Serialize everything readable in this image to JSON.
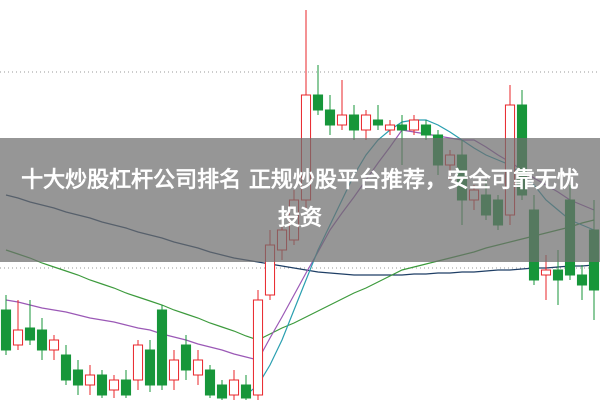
{
  "chart_data": {
    "type": "candlestick",
    "title": "十大炒股杠杆公司排名 正规炒股平台推荐，安全可靠无忧投资",
    "categories": [
      null,
      null,
      null,
      null,
      null,
      null,
      null,
      null,
      null,
      null,
      null,
      null,
      null,
      null,
      null,
      null,
      null,
      null,
      null,
      null,
      null,
      null,
      null,
      null,
      null,
      null,
      null,
      null,
      null,
      null,
      null,
      null,
      null,
      null,
      null,
      null,
      null,
      null,
      null,
      null,
      null,
      null,
      null,
      null,
      null,
      null,
      null,
      null,
      null,
      null
    ],
    "open": [
      90,
      55,
      72,
      70,
      50,
      45,
      30,
      15,
      25,
      10,
      20,
      20,
      50,
      90,
      20,
      55,
      25,
      30,
      15,
      5,
      15,
      5,
      105,
      150,
      160,
      200,
      305,
      290,
      275,
      285,
      270,
      280,
      270,
      275,
      270,
      275,
      265,
      235,
      245,
      200,
      205,
      200,
      185,
      295,
      190,
      125,
      130,
      200,
      125,
      170
    ],
    "close": [
      50,
      70,
      60,
      50,
      60,
      20,
      15,
      25,
      5,
      20,
      5,
      55,
      15,
      15,
      40,
      30,
      40,
      5,
      2,
      20,
      2,
      100,
      155,
      170,
      200,
      305,
      290,
      275,
      285,
      270,
      285,
      275,
      275,
      270,
      280,
      265,
      235,
      245,
      200,
      210,
      185,
      175,
      295,
      205,
      120,
      130,
      120,
      125,
      115,
      110
    ],
    "high": [
      105,
      100,
      100,
      82,
      65,
      55,
      40,
      35,
      30,
      25,
      30,
      60,
      60,
      95,
      50,
      65,
      50,
      35,
      20,
      30,
      25,
      110,
      170,
      185,
      210,
      390,
      335,
      305,
      320,
      295,
      290,
      295,
      280,
      285,
      285,
      280,
      270,
      250,
      260,
      215,
      220,
      205,
      315,
      310,
      205,
      145,
      150,
      215,
      135,
      200
    ],
    "low": [
      45,
      50,
      55,
      40,
      40,
      15,
      5,
      5,
      2,
      2,
      2,
      10,
      8,
      10,
      10,
      20,
      15,
      2,
      0,
      0,
      0,
      0,
      100,
      140,
      155,
      190,
      285,
      265,
      270,
      260,
      260,
      270,
      265,
      235,
      265,
      260,
      225,
      220,
      175,
      190,
      180,
      170,
      175,
      200,
      115,
      100,
      95,
      120,
      100,
      80
    ],
    "up_color": "#e8242a",
    "down_color": "#17963a",
    "ylim": [
      0,
      400
    ],
    "series": [
      {
        "color": "#1f3f66",
        "values": [
          205,
          202,
          198,
          195,
          192,
          188,
          185,
          182,
          178,
          175,
          172,
          168,
          165,
          162,
          158,
          155,
          152,
          148,
          145,
          142,
          140,
          138,
          136,
          134,
          132,
          130,
          128,
          127,
          126,
          125,
          125,
          125,
          125,
          125,
          126,
          126,
          127,
          127,
          128,
          128,
          129,
          130,
          130,
          131,
          132,
          132,
          133,
          134,
          134,
          135
        ]
      },
      {
        "color": "#3c9a3c",
        "values": [
          150,
          146,
          142,
          137,
          133,
          129,
          125,
          120,
          116,
          112,
          107,
          103,
          99,
          95,
          90,
          86,
          82,
          77,
          73,
          69,
          64,
          60,
          66,
          72,
          77,
          83,
          89,
          95,
          101,
          107,
          112,
          118,
          124,
          130,
          133,
          136,
          139,
          142,
          145,
          148,
          152,
          155,
          158,
          161,
          164,
          167,
          170,
          173,
          177,
          180
        ]
      },
      {
        "color": "#9b59b6",
        "values": [
          100,
          98,
          95,
          92,
          90,
          88,
          85,
          82,
          80,
          78,
          75,
          72,
          70,
          66,
          63,
          60,
          56,
          53,
          50,
          46,
          43,
          40,
          62,
          83,
          105,
          127,
          148,
          170,
          187,
          203,
          220,
          237,
          253,
          270,
          268,
          266,
          264,
          262,
          260,
          260,
          253,
          245,
          238,
          230,
          222,
          215,
          208,
          200,
          195,
          190
        ]
      },
      {
        "color": "#2a9fb0",
        "values": [
          null,
          null,
          null,
          null,
          null,
          null,
          null,
          null,
          null,
          null,
          null,
          null,
          null,
          null,
          null,
          null,
          null,
          null,
          null,
          null,
          5,
          15,
          35,
          60,
          90,
          120,
          150,
          175,
          200,
          225,
          245,
          260,
          270,
          278,
          280,
          280,
          275,
          268,
          260,
          252,
          245,
          240,
          235,
          225,
          215,
          200,
          190,
          180,
          175,
          170
        ]
      }
    ]
  }
}
